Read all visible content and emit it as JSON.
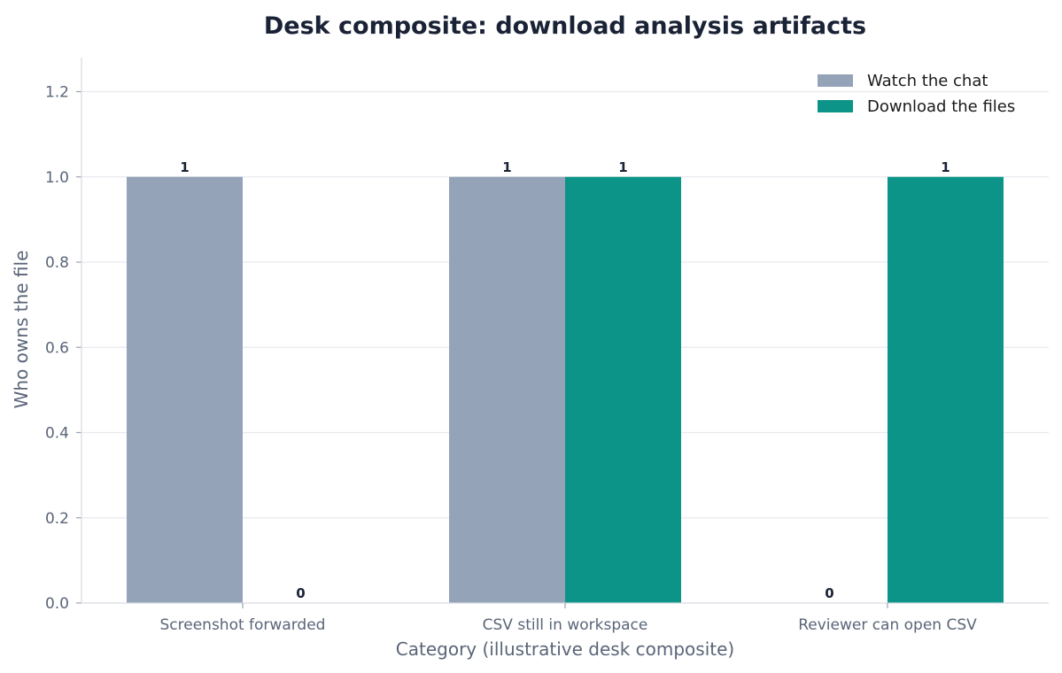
{
  "chart_data": {
    "type": "bar",
    "title": "Desk composite: download analysis artifacts",
    "xlabel": "Category (illustrative desk composite)",
    "ylabel": "Who owns the file",
    "categories": [
      "Screenshot forwarded",
      "CSV still in workspace",
      "Reviewer can open CSV"
    ],
    "series": [
      {
        "name": "Watch the chat",
        "values": [
          1,
          1,
          0
        ],
        "color": "#94a3b8"
      },
      {
        "name": "Download the files",
        "values": [
          0,
          1,
          1
        ],
        "color": "#0d9488"
      }
    ],
    "data_labels": [
      [
        "1",
        "1",
        "0"
      ],
      [
        "0",
        "1",
        "1"
      ]
    ],
    "ylim": [
      0,
      1.28
    ],
    "yticks": [
      "0.0",
      "0.2",
      "0.4",
      "0.6",
      "0.8",
      "1.0",
      "1.2"
    ],
    "grid": "horizontal",
    "legend_position": "top-right"
  }
}
